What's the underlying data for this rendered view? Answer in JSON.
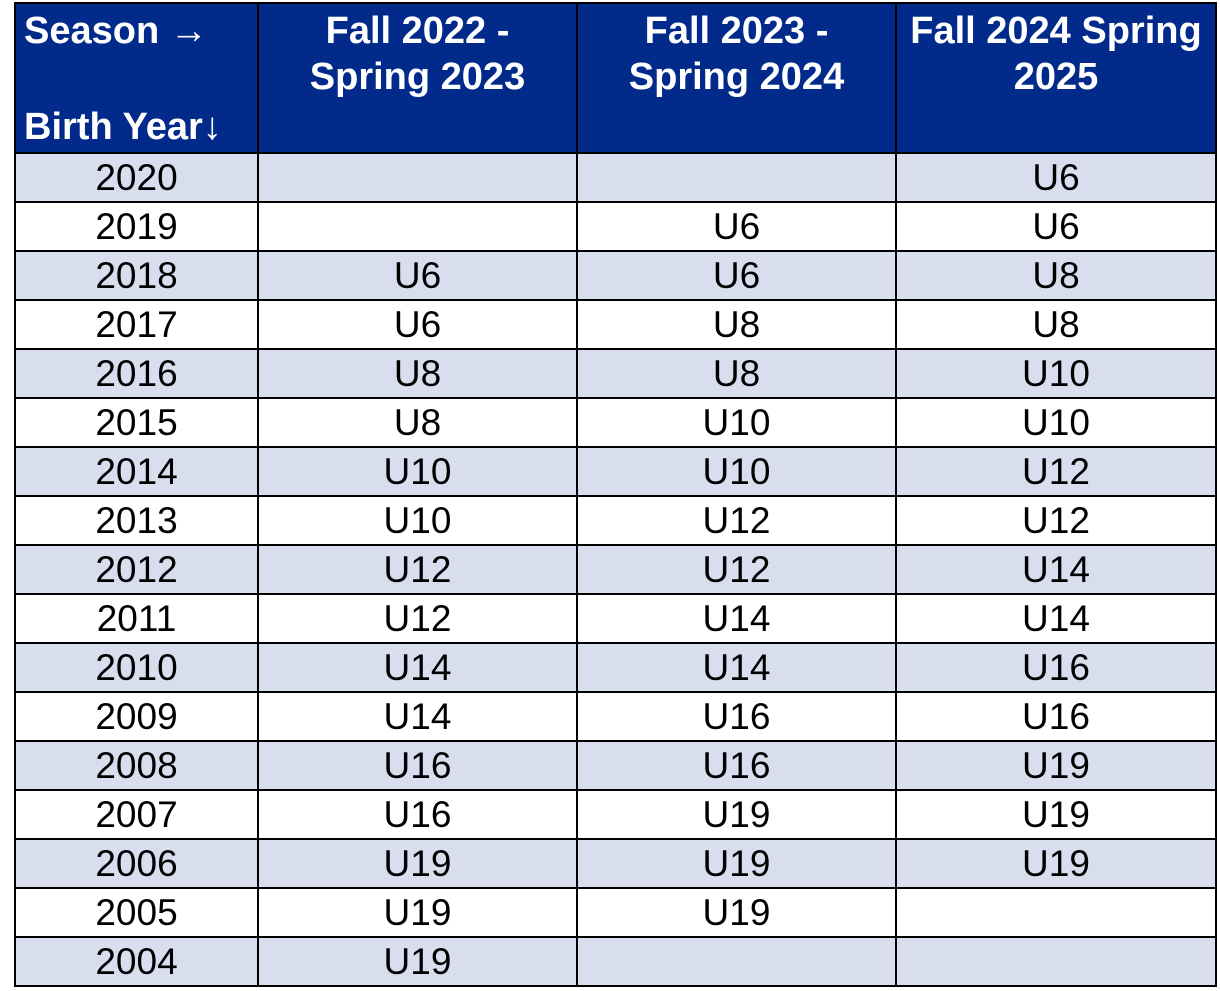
{
  "header": {
    "season_label": "Season →",
    "birth_year_label": "Birth Year↓",
    "seasons": [
      {
        "line1": "Fall 2022 -",
        "line2": "Spring 2023"
      },
      {
        "line1": "Fall 2023 -",
        "line2": "Spring 2024"
      },
      {
        "line1": "Fall 2024 Spring",
        "line2": "2025"
      }
    ]
  },
  "rows": [
    {
      "year": "2020",
      "cells": [
        "",
        "",
        "U6"
      ]
    },
    {
      "year": "2019",
      "cells": [
        "",
        "U6",
        "U6"
      ]
    },
    {
      "year": "2018",
      "cells": [
        "U6",
        "U6",
        "U8"
      ]
    },
    {
      "year": "2017",
      "cells": [
        "U6",
        "U8",
        "U8"
      ]
    },
    {
      "year": "2016",
      "cells": [
        "U8",
        "U8",
        "U10"
      ]
    },
    {
      "year": "2015",
      "cells": [
        "U8",
        "U10",
        "U10"
      ]
    },
    {
      "year": "2014",
      "cells": [
        "U10",
        "U10",
        "U12"
      ]
    },
    {
      "year": "2013",
      "cells": [
        "U10",
        "U12",
        "U12"
      ]
    },
    {
      "year": "2012",
      "cells": [
        "U12",
        "U12",
        "U14"
      ]
    },
    {
      "year": "2011",
      "cells": [
        "U12",
        "U14",
        "U14"
      ]
    },
    {
      "year": "2010",
      "cells": [
        "U14",
        "U14",
        "U16"
      ]
    },
    {
      "year": "2009",
      "cells": [
        "U14",
        "U16",
        "U16"
      ]
    },
    {
      "year": "2008",
      "cells": [
        "U16",
        "U16",
        "U19"
      ]
    },
    {
      "year": "2007",
      "cells": [
        "U16",
        "U19",
        "U19"
      ]
    },
    {
      "year": "2006",
      "cells": [
        "U19",
        "U19",
        "U19"
      ]
    },
    {
      "year": "2005",
      "cells": [
        "U19",
        "U19",
        ""
      ]
    },
    {
      "year": "2004",
      "cells": [
        "U19",
        "",
        ""
      ]
    }
  ],
  "colors": {
    "header_bg": "#012a8a",
    "header_text": "#ffffff",
    "row_shaded": "#d9deef",
    "row_plain": "#ffffff",
    "border": "#000000"
  }
}
